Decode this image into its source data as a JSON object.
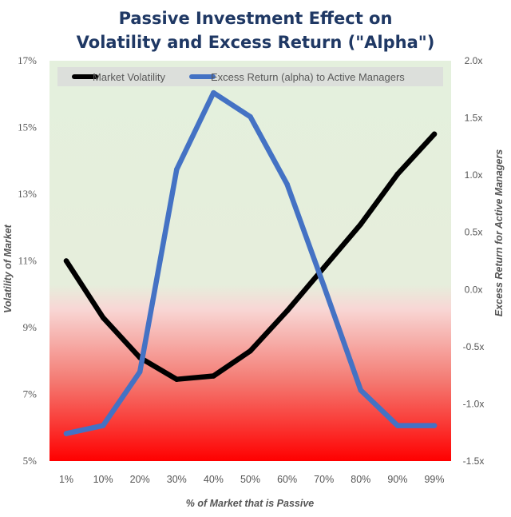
{
  "chart_data": {
    "type": "line",
    "title_lines": [
      "Passive Investment Effect on",
      "Volatility and Excess Return (\"Alpha\")"
    ],
    "xlabel": "% of Market that is Passive",
    "ylabel_left": "Volatility of Market",
    "ylabel_right": "Excess Return for Active Managers",
    "categories": [
      "1%",
      "10%",
      "20%",
      "30%",
      "40%",
      "50%",
      "60%",
      "70%",
      "80%",
      "90%",
      "99%"
    ],
    "y_left": {
      "ylim": [
        5,
        17
      ],
      "ticks": [
        5,
        7,
        9,
        11,
        13,
        15,
        17
      ],
      "tick_labels": [
        "5%",
        "7%",
        "9%",
        "11%",
        "13%",
        "15%",
        "17%"
      ]
    },
    "y_right": {
      "ylim": [
        -1.5,
        2.0
      ],
      "ticks": [
        -1.5,
        -1.0,
        -0.5,
        0.0,
        0.5,
        1.0,
        1.5,
        2.0
      ],
      "tick_labels": [
        "-1.5x",
        "-1.0x",
        "-0.5x",
        "0.0x",
        "0.5x",
        "1.0x",
        "1.5x",
        "2.0x"
      ]
    },
    "series": [
      {
        "name": "Market Volatility",
        "axis": "left",
        "color": "#000000",
        "values": [
          11.0,
          9.3,
          8.1,
          7.45,
          7.55,
          8.3,
          9.5,
          10.8,
          12.1,
          13.6,
          14.8
        ]
      },
      {
        "name": "Excess Return (alpha) to Active Managers",
        "axis": "right",
        "color": "#4472c4",
        "values": [
          -1.26,
          -1.19,
          -0.72,
          1.05,
          1.72,
          1.51,
          0.92,
          0.03,
          -0.88,
          -1.19,
          -1.19
        ]
      }
    ],
    "background": {
      "description": "vertical gradient: light green above 10%, fading pink to red toward bottom",
      "colors": [
        "#e4f0dd",
        "#f5c6c6",
        "#ff0000"
      ]
    },
    "legend_position": "top",
    "grid": false
  }
}
